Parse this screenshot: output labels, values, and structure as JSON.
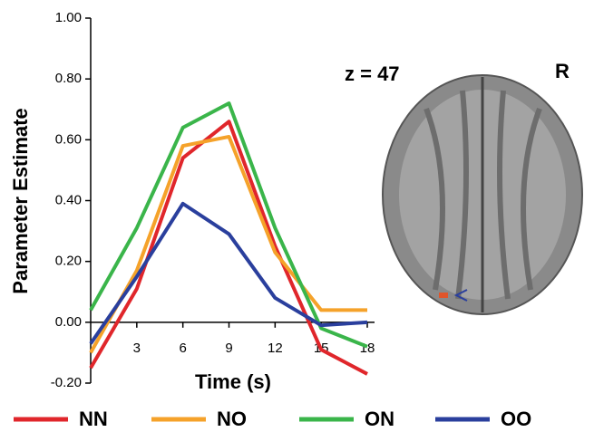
{
  "chart_data": {
    "type": "line",
    "x": [
      0,
      3,
      6,
      9,
      12,
      15,
      18
    ],
    "xlim": [
      0,
      18
    ],
    "xticks": [
      3,
      6,
      9,
      12,
      15,
      18
    ],
    "ylim": [
      -0.2,
      1.0
    ],
    "yticks": [
      {
        "value": -0.2,
        "label": "-0.20"
      },
      {
        "value": 0,
        "label": "0.00"
      },
      {
        "value": 0.2,
        "label": "0.20"
      },
      {
        "value": 0.4,
        "label": "0.40"
      },
      {
        "value": 0.6,
        "label": "0.60"
      },
      {
        "value": 0.8,
        "label": "0.80"
      },
      {
        "value": 1.0,
        "label": "1.00"
      }
    ],
    "x_label": "Time (s)",
    "y_label": "Parameter Estimate",
    "annotations": [
      "z = 47",
      "R"
    ],
    "series": [
      {
        "name": "NN",
        "color": "#e0262b",
        "values": [
          -0.15,
          0.11,
          0.54,
          0.66,
          0.25,
          -0.09,
          -0.17
        ]
      },
      {
        "name": "NO",
        "color": "#f5a22a",
        "values": [
          -0.1,
          0.17,
          0.58,
          0.61,
          0.23,
          0.04,
          0.04
        ]
      },
      {
        "name": "ON",
        "color": "#3ab54a",
        "values": [
          0.04,
          0.31,
          0.64,
          0.72,
          0.31,
          -0.02,
          -0.08
        ]
      },
      {
        "name": "OO",
        "color": "#2a3f9d",
        "values": [
          -0.07,
          0.15,
          0.39,
          0.29,
          0.08,
          -0.01,
          0.0
        ]
      }
    ]
  }
}
